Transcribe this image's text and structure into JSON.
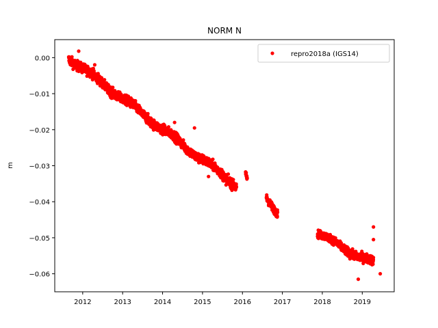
{
  "chart_data": {
    "type": "scatter",
    "title": "NORM N",
    "xlabel": "",
    "ylabel": "m",
    "xlim": [
      2011.3,
      2019.8
    ],
    "ylim": [
      -0.065,
      0.005
    ],
    "x_ticks": [
      2012,
      2013,
      2014,
      2015,
      2016,
      2017,
      2018,
      2019
    ],
    "x_tick_labels": [
      "2012",
      "2013",
      "2014",
      "2015",
      "2016",
      "2017",
      "2018",
      "2019"
    ],
    "y_ticks": [
      0.0,
      -0.01,
      -0.02,
      -0.03,
      -0.04,
      -0.05,
      -0.06
    ],
    "y_tick_labels": [
      "0.00",
      "−0.01",
      "−0.02",
      "−0.03",
      "−0.04",
      "−0.05",
      "−0.06"
    ],
    "grid": false,
    "legend_position": "top-right",
    "series": [
      {
        "name": "repro2018a (IGS14)",
        "color": "#ff0000",
        "marker": "circle",
        "segments": [
          {
            "x_start": 2011.65,
            "x_end": 2015.85,
            "y_start": 0.0,
            "y_end": -0.0355,
            "scatter": 0.0011
          },
          {
            "x_start": 2016.08,
            "x_end": 2016.12,
            "y_start": -0.0325,
            "y_end": -0.034,
            "scatter": 0.0006
          },
          {
            "x_start": 2016.6,
            "x_end": 2016.88,
            "y_start": -0.0385,
            "y_end": -0.043,
            "scatter": 0.0009
          },
          {
            "x_start": 2017.88,
            "x_end": 2018.45,
            "y_start": -0.0485,
            "y_end": -0.0525,
            "scatter": 0.0009
          },
          {
            "x_start": 2018.45,
            "x_end": 2019.28,
            "y_start": -0.0525,
            "y_end": -0.057,
            "scatter": 0.001
          }
        ],
        "outliers": [
          {
            "x": 2011.9,
            "y": 0.0018
          },
          {
            "x": 2012.3,
            "y": -0.002
          },
          {
            "x": 2014.3,
            "y": -0.018
          },
          {
            "x": 2014.8,
            "y": -0.0195
          },
          {
            "x": 2015.15,
            "y": -0.033
          },
          {
            "x": 2019.28,
            "y": -0.047
          },
          {
            "x": 2019.28,
            "y": -0.0505
          },
          {
            "x": 2019.45,
            "y": -0.06
          },
          {
            "x": 2018.9,
            "y": -0.0615
          }
        ]
      }
    ]
  }
}
